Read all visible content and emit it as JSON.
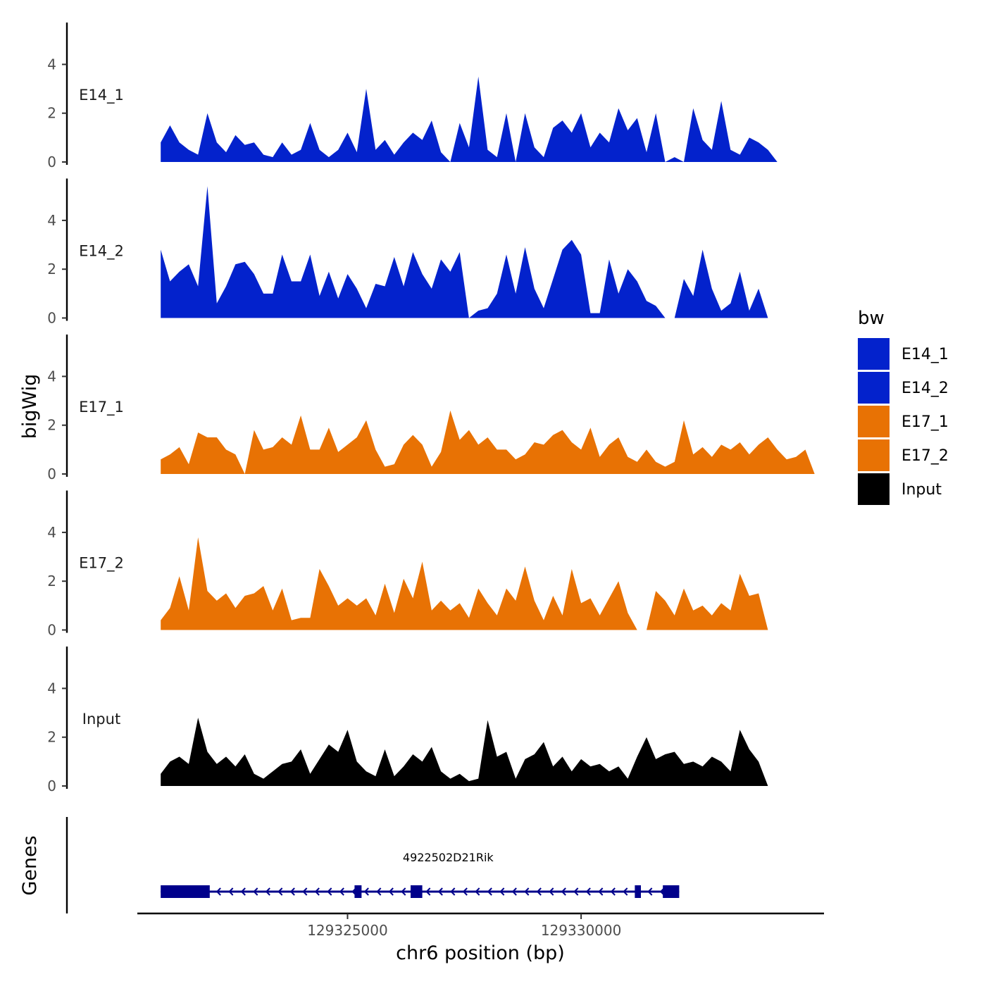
{
  "chart_data": {
    "type": "area",
    "ylabel": "bigWig",
    "xlabel": "chr6 position (bp)",
    "genes_label": "Genes",
    "y_ticks": [
      0,
      2,
      4
    ],
    "y_tick_labels": [
      "0",
      "2",
      "4"
    ],
    "ylim": [
      0,
      5.6
    ],
    "xlim": [
      129320500,
      129335200
    ],
    "x_ticks": [
      129325000,
      129330000
    ],
    "x_tick_labels": [
      "129325000",
      "129330000"
    ],
    "legend": {
      "title": "bw",
      "entries": [
        {
          "label": "E14_1",
          "color": "#0322cc"
        },
        {
          "label": "E14_2",
          "color": "#0322cc"
        },
        {
          "label": "E17_1",
          "color": "#e87204"
        },
        {
          "label": "E17_2",
          "color": "#e87204"
        },
        {
          "label": "Input",
          "color": "#000000"
        }
      ]
    },
    "series": [
      {
        "name": "E14_1",
        "color": "#0322cc",
        "x": [
          129321000,
          129321200,
          129321400,
          129321600,
          129321800,
          129322000,
          129322200,
          129322400,
          129322600,
          129322800,
          129323000,
          129323200,
          129323400,
          129323600,
          129323800,
          129324000,
          129324200,
          129324400,
          129324600,
          129324800,
          129325000,
          129325200,
          129325400,
          129325600,
          129325800,
          129326000,
          129326200,
          129326400,
          129326600,
          129326800,
          129327000,
          129327200,
          129327400,
          129327600,
          129327800,
          129328000,
          129328200,
          129328400,
          129328600,
          129328800,
          129329000,
          129329200,
          129329400,
          129329600,
          129329800,
          129330000,
          129330200,
          129330400,
          129330600,
          129330800,
          129331000,
          129331200,
          129331400,
          129331600,
          129331800,
          129332000,
          129332200,
          129332400,
          129332600,
          129332800,
          129333000,
          129333200,
          129333400,
          129333600,
          129333800,
          129334000,
          129334200,
          129334400,
          129334600,
          129334800,
          129335000
        ],
        "values": [
          0.8,
          1.5,
          0.8,
          0.5,
          0.3,
          2.0,
          0.8,
          0.4,
          1.1,
          0.7,
          0.8,
          0.3,
          0.2,
          0.8,
          0.3,
          0.5,
          1.6,
          0.5,
          0.2,
          0.5,
          1.2,
          0.4,
          3.0,
          0.5,
          0.9,
          0.3,
          0.8,
          1.2,
          0.9,
          1.7,
          0.4,
          0.0,
          1.6,
          0.6,
          3.5,
          0.5,
          0.2,
          2.0,
          0.0,
          2.0,
          0.6,
          0.2,
          1.4,
          1.7,
          1.2,
          2.0,
          0.6,
          1.2,
          0.8,
          2.2,
          1.3,
          1.8,
          0.4,
          2.0,
          0.0,
          0.2,
          0.0,
          2.2,
          0.9,
          0.5,
          2.5,
          0.5,
          0.3,
          1.0,
          0.8,
          0.5,
          0.0,
          0.0,
          0.0,
          0.0,
          0.0
        ]
      },
      {
        "name": "E14_2",
        "color": "#0322cc",
        "x": [
          129321000,
          129321200,
          129321400,
          129321600,
          129321800,
          129322000,
          129322200,
          129322400,
          129322600,
          129322800,
          129323000,
          129323200,
          129323400,
          129323600,
          129323800,
          129324000,
          129324200,
          129324400,
          129324600,
          129324800,
          129325000,
          129325200,
          129325400,
          129325600,
          129325800,
          129326000,
          129326200,
          129326400,
          129326600,
          129326800,
          129327000,
          129327200,
          129327400,
          129327600,
          129327800,
          129328000,
          129328200,
          129328400,
          129328600,
          129328800,
          129329000,
          129329200,
          129329400,
          129329600,
          129329800,
          129330000,
          129330200,
          129330400,
          129330600,
          129330800,
          129331000,
          129331200,
          129331400,
          129331600,
          129331800,
          129332000,
          129332200,
          129332400,
          129332600,
          129332800,
          129333000,
          129333200,
          129333400,
          129333600,
          129333800,
          129334000,
          129334200,
          129334400,
          129334600,
          129334800,
          129335000
        ],
        "values": [
          2.8,
          1.5,
          1.9,
          2.2,
          1.3,
          5.4,
          0.6,
          1.3,
          2.2,
          2.3,
          1.8,
          1.0,
          1.0,
          2.6,
          1.5,
          1.5,
          2.6,
          0.9,
          1.9,
          0.8,
          1.8,
          1.2,
          0.4,
          1.4,
          1.3,
          2.5,
          1.3,
          2.7,
          1.8,
          1.2,
          2.4,
          1.9,
          2.7,
          0.0,
          0.3,
          0.4,
          1.0,
          2.6,
          1.0,
          2.9,
          1.2,
          0.4,
          1.6,
          2.8,
          3.2,
          2.6,
          0.2,
          0.2,
          2.4,
          1.0,
          2.0,
          1.5,
          0.7,
          0.5,
          0.0,
          0.0,
          1.6,
          0.9,
          2.8,
          1.2,
          0.3,
          0.6,
          1.9,
          0.3,
          1.2,
          0.0,
          0.0,
          0.0,
          0.0,
          0.0,
          0.0
        ]
      },
      {
        "name": "E17_1",
        "color": "#e87204",
        "x": [
          129321000,
          129321200,
          129321400,
          129321600,
          129321800,
          129322000,
          129322200,
          129322400,
          129322600,
          129322800,
          129323000,
          129323200,
          129323400,
          129323600,
          129323800,
          129324000,
          129324200,
          129324400,
          129324600,
          129324800,
          129325000,
          129325200,
          129325400,
          129325600,
          129325800,
          129326000,
          129326200,
          129326400,
          129326600,
          129326800,
          129327000,
          129327200,
          129327400,
          129327600,
          129327800,
          129328000,
          129328200,
          129328400,
          129328600,
          129328800,
          129329000,
          129329200,
          129329400,
          129329600,
          129329800,
          129330000,
          129330200,
          129330400,
          129330600,
          129330800,
          129331000,
          129331200,
          129331400,
          129331600,
          129331800,
          129332000,
          129332200,
          129332400,
          129332600,
          129332800,
          129333000,
          129333200,
          129333400,
          129333600,
          129333800,
          129334000,
          129334200,
          129334400,
          129334600,
          129334800,
          129335000
        ],
        "values": [
          0.6,
          0.8,
          1.1,
          0.4,
          1.7,
          1.5,
          1.5,
          1.0,
          0.8,
          0.0,
          1.8,
          1.0,
          1.1,
          1.5,
          1.2,
          2.4,
          1.0,
          1.0,
          1.9,
          0.9,
          1.2,
          1.5,
          2.2,
          1.0,
          0.3,
          0.4,
          1.2,
          1.6,
          1.2,
          0.3,
          0.9,
          2.6,
          1.4,
          1.8,
          1.2,
          1.5,
          1.0,
          1.0,
          0.6,
          0.8,
          1.3,
          1.2,
          1.6,
          1.8,
          1.3,
          1.0,
          1.9,
          0.7,
          1.2,
          1.5,
          0.7,
          0.5,
          1.0,
          0.5,
          0.3,
          0.5,
          2.2,
          0.8,
          1.1,
          0.7,
          1.2,
          1.0,
          1.3,
          0.8,
          1.2,
          1.5,
          1.0,
          0.6,
          0.7,
          1.0,
          0.0
        ]
      },
      {
        "name": "E17_2",
        "color": "#e87204",
        "x": [
          129321000,
          129321200,
          129321400,
          129321600,
          129321800,
          129322000,
          129322200,
          129322400,
          129322600,
          129322800,
          129323000,
          129323200,
          129323400,
          129323600,
          129323800,
          129324000,
          129324200,
          129324400,
          129324600,
          129324800,
          129325000,
          129325200,
          129325400,
          129325600,
          129325800,
          129326000,
          129326200,
          129326400,
          129326600,
          129326800,
          129327000,
          129327200,
          129327400,
          129327600,
          129327800,
          129328000,
          129328200,
          129328400,
          129328600,
          129328800,
          129329000,
          129329200,
          129329400,
          129329600,
          129329800,
          129330000,
          129330200,
          129330400,
          129330600,
          129330800,
          129331000,
          129331200,
          129331400,
          129331600,
          129331800,
          129332000,
          129332200,
          129332400,
          129332600,
          129332800,
          129333000,
          129333200,
          129333400,
          129333600,
          129333800,
          129334000,
          129334200,
          129334400,
          129334600,
          129334800,
          129335000
        ],
        "values": [
          0.4,
          0.9,
          2.2,
          0.8,
          3.8,
          1.6,
          1.2,
          1.5,
          0.9,
          1.4,
          1.5,
          1.8,
          0.8,
          1.7,
          0.4,
          0.5,
          0.5,
          2.5,
          1.8,
          1.0,
          1.3,
          1.0,
          1.3,
          0.6,
          1.9,
          0.7,
          2.1,
          1.3,
          2.8,
          0.8,
          1.2,
          0.8,
          1.1,
          0.5,
          1.7,
          1.1,
          0.6,
          1.7,
          1.2,
          2.6,
          1.2,
          0.4,
          1.4,
          0.6,
          2.5,
          1.1,
          1.3,
          0.6,
          1.3,
          2.0,
          0.7,
          0.0,
          0.0,
          1.6,
          1.2,
          0.6,
          1.7,
          0.8,
          1.0,
          0.6,
          1.1,
          0.8,
          2.3,
          1.4,
          1.5,
          0.0,
          0.0,
          0.0,
          0.0,
          0.0,
          0.0
        ]
      },
      {
        "name": "Input",
        "color": "#000000",
        "x": [
          129321000,
          129321200,
          129321400,
          129321600,
          129321800,
          129322000,
          129322200,
          129322400,
          129322600,
          129322800,
          129323000,
          129323200,
          129323400,
          129323600,
          129323800,
          129324000,
          129324200,
          129324400,
          129324600,
          129324800,
          129325000,
          129325200,
          129325400,
          129325600,
          129325800,
          129326000,
          129326200,
          129326400,
          129326600,
          129326800,
          129327000,
          129327200,
          129327400,
          129327600,
          129327800,
          129328000,
          129328200,
          129328400,
          129328600,
          129328800,
          129329000,
          129329200,
          129329400,
          129329600,
          129329800,
          129330000,
          129330200,
          129330400,
          129330600,
          129330800,
          129331000,
          129331200,
          129331400,
          129331600,
          129331800,
          129332000,
          129332200,
          129332400,
          129332600,
          129332800,
          129333000,
          129333200,
          129333400,
          129333600,
          129333800,
          129334000,
          129334200,
          129334400,
          129334600,
          129334800,
          129335000
        ],
        "values": [
          0.5,
          1.0,
          1.2,
          0.9,
          2.8,
          1.4,
          0.9,
          1.2,
          0.8,
          1.3,
          0.5,
          0.3,
          0.6,
          0.9,
          1.0,
          1.5,
          0.5,
          1.1,
          1.7,
          1.4,
          2.3,
          1.0,
          0.6,
          0.4,
          1.5,
          0.4,
          0.8,
          1.3,
          1.0,
          1.6,
          0.6,
          0.3,
          0.5,
          0.2,
          0.3,
          2.7,
          1.2,
          1.4,
          0.3,
          1.1,
          1.3,
          1.8,
          0.8,
          1.2,
          0.6,
          1.1,
          0.8,
          0.9,
          0.6,
          0.8,
          0.3,
          1.2,
          2.0,
          1.1,
          1.3,
          1.4,
          0.9,
          1.0,
          0.8,
          1.2,
          1.0,
          0.6,
          2.3,
          1.5,
          1.0,
          0.0,
          0.0,
          0.0,
          0.0,
          0.0,
          0.0
        ]
      }
    ],
    "gene": {
      "name": "4922502D21Rik",
      "strand": "-",
      "start": 129321000,
      "end": 129332100,
      "color": "#00008b",
      "exons": [
        [
          129321000,
          129322050
        ],
        [
          129325150,
          129325300
        ],
        [
          129326350,
          129326600
        ],
        [
          129331150,
          129331280
        ],
        [
          129331750,
          129332100
        ]
      ]
    }
  }
}
